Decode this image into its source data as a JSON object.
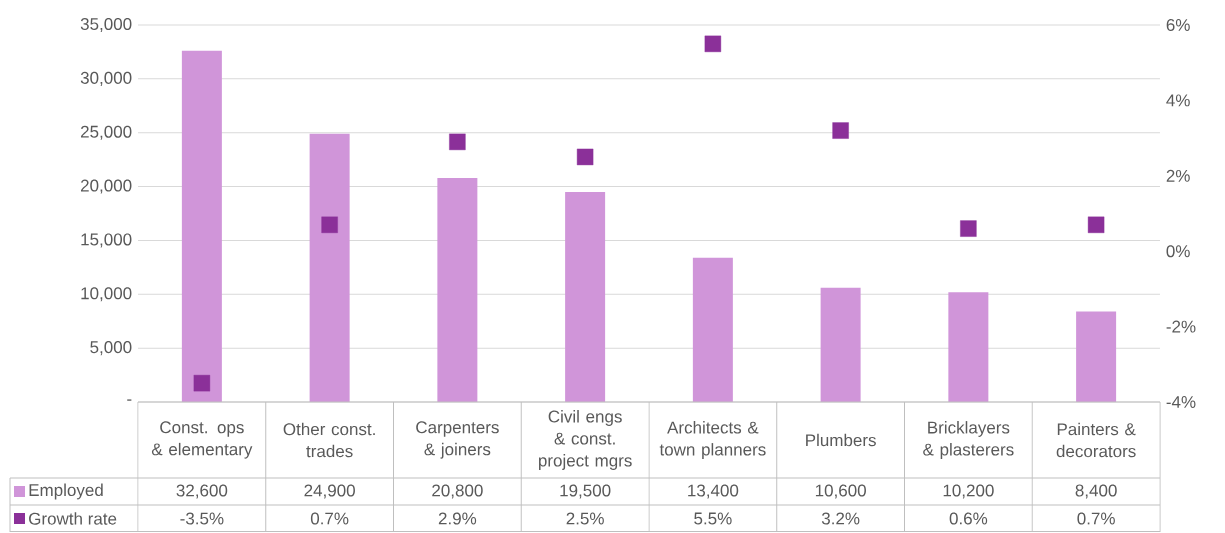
{
  "chart_data": {
    "type": "bar",
    "categories": [
      "Const. ops & elementary",
      "Other const. trades",
      "Carpenters & joiners",
      "Civil engs & const. project mgrs",
      "Architects & town planners",
      "Plumbers",
      "Bricklayers & plasterers",
      "Painters & decorators"
    ],
    "series": [
      {
        "name": "Employed",
        "color": "#d095d9",
        "values": [
          32600,
          24900,
          20800,
          19500,
          13400,
          10600,
          10200,
          8400
        ],
        "value_labels": [
          "32,600",
          "24,900",
          "20,800",
          "19,500",
          "13,400",
          "10,600",
          "10,200",
          "8,400"
        ]
      },
      {
        "name": "Growth rate",
        "type": "scatter",
        "axis": "y2",
        "marker": "square",
        "color": "#8b3099",
        "values": [
          -3.5,
          0.7,
          2.9,
          2.5,
          5.5,
          3.2,
          0.6,
          0.7
        ],
        "value_labels": [
          "-3.5%",
          "0.7%",
          "2.9%",
          "2.5%",
          "5.5%",
          "3.2%",
          "0.6%",
          "0.7%"
        ]
      }
    ],
    "ylim": [
      0,
      35000
    ],
    "yticks": [
      {
        "value": 0,
        "label": "-"
      },
      {
        "value": 5000,
        "label": "5,000"
      },
      {
        "value": 10000,
        "label": "10,000"
      },
      {
        "value": 15000,
        "label": "15,000"
      },
      {
        "value": 20000,
        "label": "20,000"
      },
      {
        "value": 25000,
        "label": "25,000"
      },
      {
        "value": 30000,
        "label": "30,000"
      },
      {
        "value": 35000,
        "label": "35,000"
      }
    ],
    "y2lim": [
      -4,
      6
    ],
    "y2ticks": [
      {
        "value": -4,
        "label": "-4%"
      },
      {
        "value": -2,
        "label": "-2%"
      },
      {
        "value": 0,
        "label": "0%"
      },
      {
        "value": 2,
        "label": "2%"
      },
      {
        "value": 4,
        "label": "4%"
      },
      {
        "value": 6,
        "label": "6%"
      }
    ],
    "grid": "y",
    "legend": "bottom left"
  }
}
